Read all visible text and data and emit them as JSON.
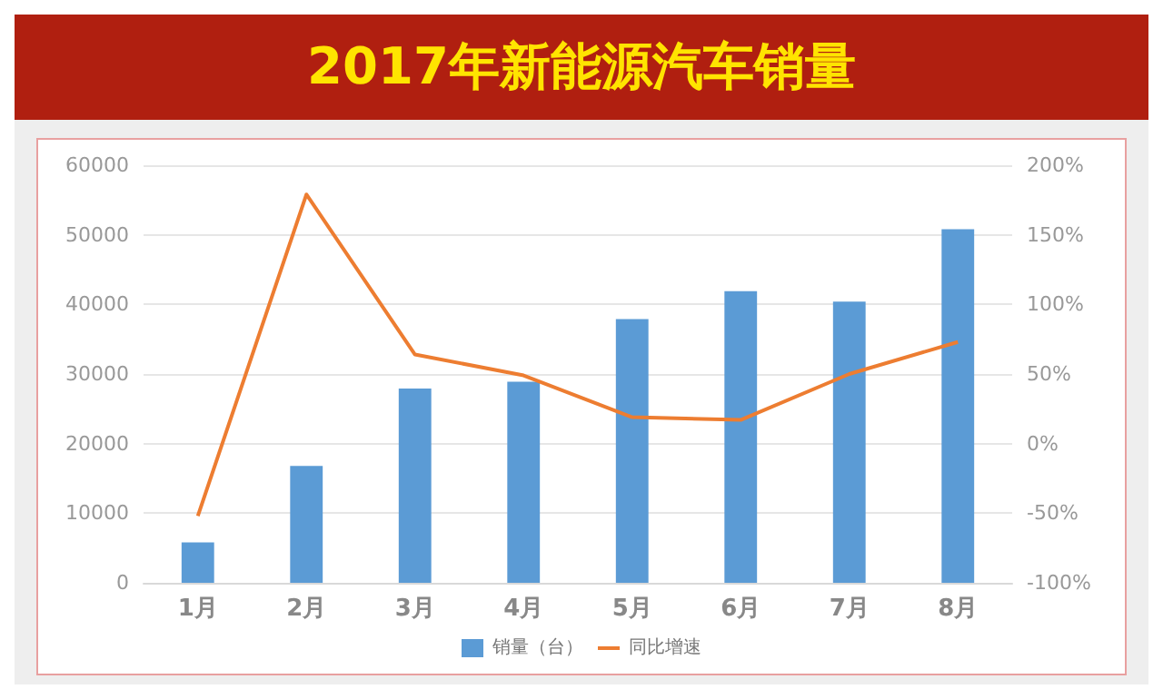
{
  "chart_data": {
    "type": "bar",
    "title": "2017年新能源汽车销量",
    "categories": [
      "1月",
      "2月",
      "3月",
      "4月",
      "5月",
      "6月",
      "7月",
      "8月"
    ],
    "series": [
      {
        "name": "销量（台）",
        "color": "#5b9bd5",
        "values": [
          5800,
          16800,
          27900,
          28900,
          37900,
          41900,
          40400,
          50800
        ]
      },
      {
        "name": "同比增速",
        "type": "line",
        "axis": "y2",
        "color": "#ed7d31",
        "values": [
          -52,
          179,
          64,
          49,
          19,
          17,
          50,
          73
        ]
      }
    ],
    "ylim": [
      0,
      60000
    ],
    "yticks": [
      0,
      10000,
      20000,
      30000,
      40000,
      50000,
      60000
    ],
    "y2lim": [
      -100,
      200
    ],
    "y2ticks": [
      {
        "value": -100,
        "label": "-100%"
      },
      {
        "value": -50,
        "label": "-50%"
      },
      {
        "value": 0,
        "label": "0%"
      },
      {
        "value": 50,
        "label": "50%"
      },
      {
        "value": 100,
        "label": "100%"
      },
      {
        "value": 150,
        "label": "150%"
      },
      {
        "value": 200,
        "label": "200%"
      }
    ],
    "grid": "y",
    "legend": "bottom",
    "marker": "none"
  }
}
